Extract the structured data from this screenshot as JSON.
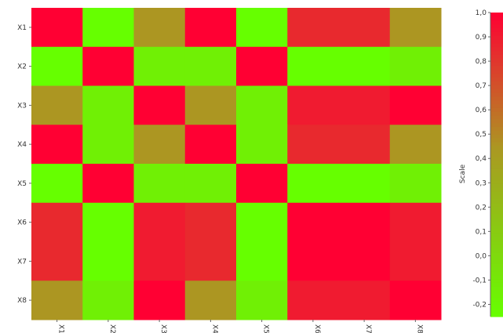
{
  "chart_data": {
    "type": "heatmap",
    "title": "",
    "rows": [
      "X1",
      "X2",
      "X3",
      "X4",
      "X5",
      "X6",
      "X7",
      "X8"
    ],
    "columns": [
      "X1",
      "X2",
      "X3",
      "X4",
      "X5",
      "X6",
      "X7",
      "X8"
    ],
    "values": [
      [
        1.0,
        -0.25,
        0.45,
        1.0,
        -0.25,
        0.85,
        0.85,
        0.45
      ],
      [
        -0.25,
        1.0,
        -0.15,
        -0.15,
        1.0,
        -0.25,
        -0.25,
        -0.15
      ],
      [
        0.45,
        -0.15,
        1.0,
        0.45,
        -0.15,
        0.9,
        0.9,
        1.0
      ],
      [
        1.0,
        -0.15,
        0.45,
        1.0,
        -0.15,
        0.85,
        0.85,
        0.45
      ],
      [
        -0.25,
        1.0,
        -0.15,
        -0.15,
        1.0,
        -0.25,
        -0.25,
        -0.15
      ],
      [
        0.85,
        -0.25,
        0.9,
        0.85,
        -0.25,
        1.0,
        1.0,
        0.9
      ],
      [
        0.85,
        -0.25,
        0.9,
        0.85,
        -0.25,
        1.0,
        1.0,
        0.9
      ],
      [
        0.45,
        -0.15,
        1.0,
        0.45,
        -0.15,
        0.9,
        0.9,
        1.0
      ]
    ],
    "scale": {
      "label": "Scale",
      "min": -0.25,
      "max": 1.0,
      "ticks": [
        "1,0",
        "0,9",
        "0,8",
        "0,7",
        "0,6",
        "0,5",
        "0,4",
        "0,3",
        "0,2",
        "0,1",
        "0,0",
        "-0,1",
        "-0,2"
      ],
      "tick_values": [
        1.0,
        0.9,
        0.8,
        0.7,
        0.6,
        0.5,
        0.4,
        0.3,
        0.2,
        0.1,
        0.0,
        -0.1,
        -0.2
      ]
    },
    "colors": {
      "low": "#66ff00",
      "mid": "#aa9922",
      "high": "#ff0033"
    },
    "grid": false
  }
}
